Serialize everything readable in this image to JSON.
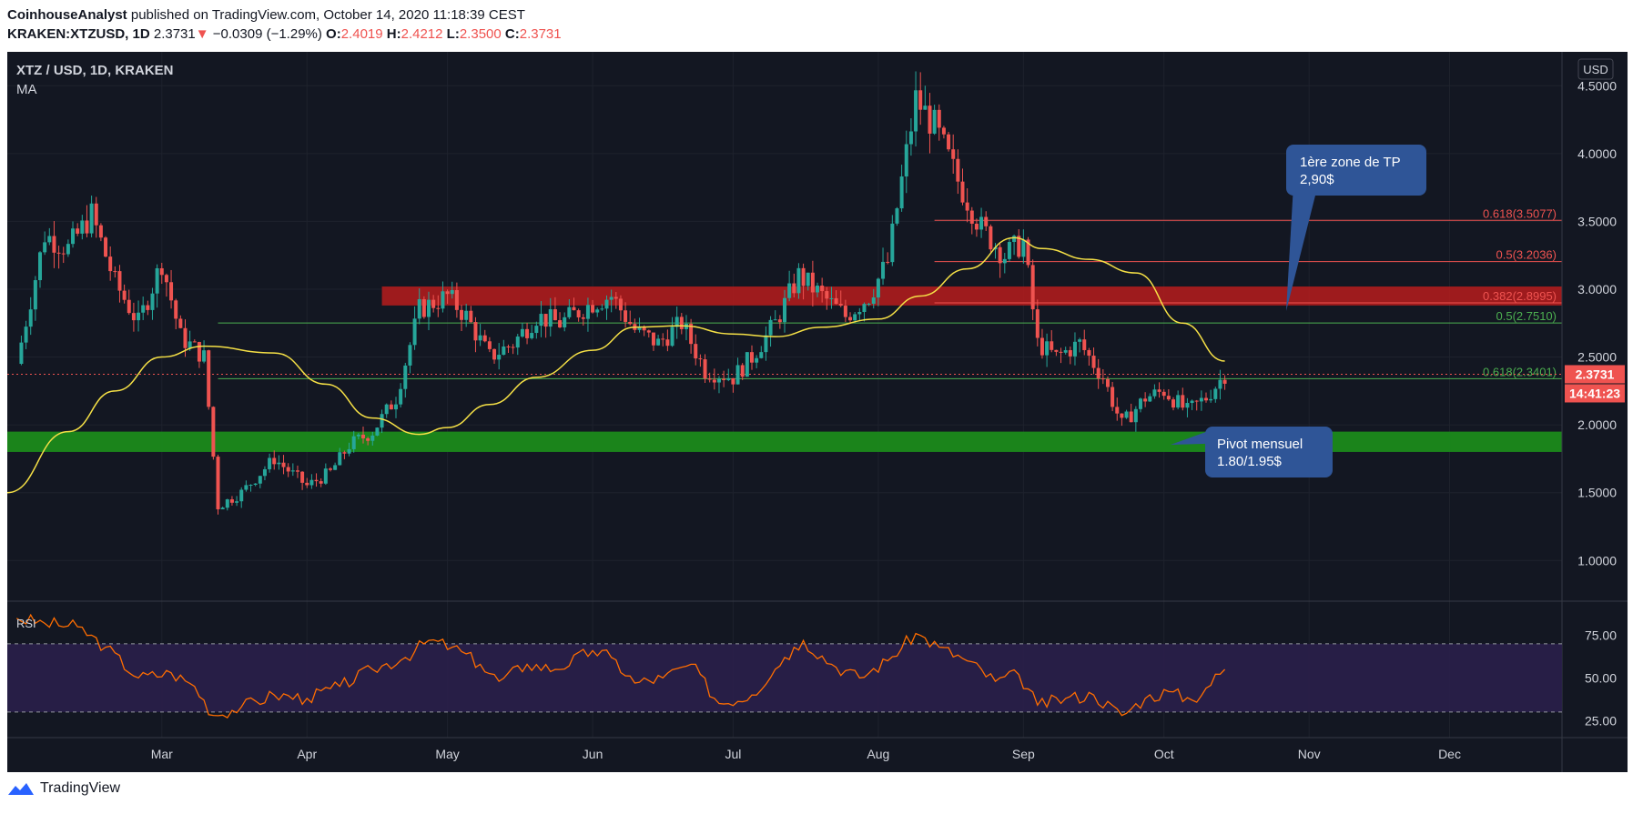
{
  "header": {
    "author": "CoinhouseAnalyst",
    "published": "published on TradingView.com, October 14, 2020 11:18:39 CEST",
    "symbol": "KRAKEN:XTZUSD, 1D",
    "last": "2.3731",
    "change_arrow": "▼",
    "change": "−0.0309 (−1.29%)",
    "o_label": "O:",
    "o_value": "2.4019",
    "h_label": "H:",
    "h_value": "2.4212",
    "l_label": "L:",
    "l_value": "2.3500",
    "c_label": "C:",
    "c_value": "2.3731"
  },
  "legend": {
    "pair": "XTZ / USD, 1D, KRAKEN",
    "indicator": "MA",
    "currency": "USD"
  },
  "price_tags": {
    "last_price": "2.3731",
    "countdown": "14:41:23"
  },
  "annotations": {
    "tp_line1": "1ère zone de TP",
    "tp_line2": "2,90$",
    "pivot_line1": "Pivot mensuel",
    "pivot_line2": "1.80/1.95$"
  },
  "footer": {
    "brand": "TradingView"
  },
  "colors": {
    "background": "#131722",
    "up": "#26a69a",
    "down": "#ef5350",
    "ma": "#f5e046",
    "rsi": "#ff6d00",
    "resistance_zone": "#b71c1c",
    "support_zone": "#1b8a1b",
    "annotation_box": "#2f5597"
  },
  "chart_data": [
    {
      "type": "candlestick",
      "title": "XTZ / USD, 1D, KRAKEN",
      "ylim": [
        0.7,
        4.75
      ],
      "xlim": [
        "2020-01-28",
        "2020-12-25"
      ],
      "y_ticks": [
        "1.0000",
        "1.5000",
        "2.0000",
        "2.5000",
        "3.0000",
        "3.5000",
        "4.0000",
        "4.5000"
      ],
      "x_ticks": [
        {
          "label": "Mar",
          "date": "2020-03-01"
        },
        {
          "label": "Apr",
          "date": "2020-04-01"
        },
        {
          "label": "May",
          "date": "2020-05-01"
        },
        {
          "label": "Jun",
          "date": "2020-06-01"
        },
        {
          "label": "Jul",
          "date": "2020-07-01"
        },
        {
          "label": "Aug",
          "date": "2020-08-01"
        },
        {
          "label": "Sep",
          "date": "2020-09-01"
        },
        {
          "label": "Oct",
          "date": "2020-10-01"
        },
        {
          "label": "Nov",
          "date": "2020-11-01"
        },
        {
          "label": "Dec",
          "date": "2020-12-01"
        }
      ],
      "price_path": [
        {
          "date": "2020-01-30",
          "close": 2.45
        },
        {
          "date": "2020-02-05",
          "close": 3.4
        },
        {
          "date": "2020-02-10",
          "close": 3.3
        },
        {
          "date": "2020-02-15",
          "close": 3.55
        },
        {
          "date": "2020-02-20",
          "close": 3.05
        },
        {
          "date": "2020-02-25",
          "close": 2.75
        },
        {
          "date": "2020-03-01",
          "close": 3.2
        },
        {
          "date": "2020-03-05",
          "close": 2.65
        },
        {
          "date": "2020-03-10",
          "close": 2.5
        },
        {
          "date": "2020-03-13",
          "close": 1.4
        },
        {
          "date": "2020-03-18",
          "close": 1.5
        },
        {
          "date": "2020-03-25",
          "close": 1.75
        },
        {
          "date": "2020-04-01",
          "close": 1.55
        },
        {
          "date": "2020-04-06",
          "close": 1.65
        },
        {
          "date": "2020-04-10",
          "close": 1.85
        },
        {
          "date": "2020-04-15",
          "close": 1.95
        },
        {
          "date": "2020-04-20",
          "close": 2.2
        },
        {
          "date": "2020-04-25",
          "close": 2.85
        },
        {
          "date": "2020-05-01",
          "close": 2.95
        },
        {
          "date": "2020-05-05",
          "close": 2.8
        },
        {
          "date": "2020-05-10",
          "close": 2.5
        },
        {
          "date": "2020-05-15",
          "close": 2.6
        },
        {
          "date": "2020-05-20",
          "close": 2.8
        },
        {
          "date": "2020-05-25",
          "close": 2.75
        },
        {
          "date": "2020-06-01",
          "close": 2.9
        },
        {
          "date": "2020-06-05",
          "close": 2.95
        },
        {
          "date": "2020-06-10",
          "close": 2.7
        },
        {
          "date": "2020-06-15",
          "close": 2.6
        },
        {
          "date": "2020-06-20",
          "close": 2.75
        },
        {
          "date": "2020-06-25",
          "close": 2.4
        },
        {
          "date": "2020-07-01",
          "close": 2.35
        },
        {
          "date": "2020-07-05",
          "close": 2.5
        },
        {
          "date": "2020-07-10",
          "close": 2.75
        },
        {
          "date": "2020-07-15",
          "close": 3.1
        },
        {
          "date": "2020-07-20",
          "close": 2.95
        },
        {
          "date": "2020-07-25",
          "close": 2.8
        },
        {
          "date": "2020-07-30",
          "close": 2.95
        },
        {
          "date": "2020-08-03",
          "close": 3.2
        },
        {
          "date": "2020-08-06",
          "close": 3.8
        },
        {
          "date": "2020-08-09",
          "close": 4.4
        },
        {
          "date": "2020-08-13",
          "close": 4.2
        },
        {
          "date": "2020-08-18",
          "close": 3.8
        },
        {
          "date": "2020-08-23",
          "close": 3.45
        },
        {
          "date": "2020-08-28",
          "close": 3.25
        },
        {
          "date": "2020-09-01",
          "close": 3.35
        },
        {
          "date": "2020-09-04",
          "close": 2.6
        },
        {
          "date": "2020-09-08",
          "close": 2.5
        },
        {
          "date": "2020-09-13",
          "close": 2.6
        },
        {
          "date": "2020-09-18",
          "close": 2.35
        },
        {
          "date": "2020-09-22",
          "close": 2.0
        },
        {
          "date": "2020-09-27",
          "close": 2.2
        },
        {
          "date": "2020-10-01",
          "close": 2.25
        },
        {
          "date": "2020-10-06",
          "close": 2.1
        },
        {
          "date": "2020-10-10",
          "close": 2.2
        },
        {
          "date": "2020-10-14",
          "close": 2.3731
        }
      ],
      "ma_path": [
        {
          "date": "2020-01-28",
          "value": 1.5
        },
        {
          "date": "2020-02-10",
          "value": 1.95
        },
        {
          "date": "2020-02-20",
          "value": 2.25
        },
        {
          "date": "2020-03-01",
          "value": 2.5
        },
        {
          "date": "2020-03-10",
          "value": 2.58
        },
        {
          "date": "2020-03-25",
          "value": 2.53
        },
        {
          "date": "2020-04-05",
          "value": 2.3
        },
        {
          "date": "2020-04-15",
          "value": 2.05
        },
        {
          "date": "2020-04-25",
          "value": 1.93
        },
        {
          "date": "2020-05-01",
          "value": 1.98
        },
        {
          "date": "2020-05-10",
          "value": 2.15
        },
        {
          "date": "2020-05-20",
          "value": 2.35
        },
        {
          "date": "2020-06-01",
          "value": 2.55
        },
        {
          "date": "2020-06-10",
          "value": 2.72
        },
        {
          "date": "2020-06-20",
          "value": 2.73
        },
        {
          "date": "2020-07-01",
          "value": 2.67
        },
        {
          "date": "2020-07-10",
          "value": 2.65
        },
        {
          "date": "2020-07-20",
          "value": 2.72
        },
        {
          "date": "2020-08-01",
          "value": 2.78
        },
        {
          "date": "2020-08-10",
          "value": 2.95
        },
        {
          "date": "2020-08-20",
          "value": 3.15
        },
        {
          "date": "2020-08-30",
          "value": 3.38
        },
        {
          "date": "2020-09-05",
          "value": 3.3
        },
        {
          "date": "2020-09-15",
          "value": 3.22
        },
        {
          "date": "2020-09-25",
          "value": 3.12
        },
        {
          "date": "2020-10-05",
          "value": 2.75
        },
        {
          "date": "2020-10-14",
          "value": 2.47
        }
      ],
      "zones": [
        {
          "kind": "resistance",
          "from": 2.88,
          "to": 3.02,
          "start_date": "2020-04-17"
        },
        {
          "kind": "support",
          "from": 1.8,
          "to": 1.95,
          "start_date": "2020-01-28"
        }
      ],
      "fib_levels": [
        {
          "label": "0.618(3.5077)",
          "price": 3.5077,
          "color": "#ef5350",
          "start_date": "2020-08-13"
        },
        {
          "label": "0.5(3.2036)",
          "price": 3.2036,
          "color": "#ef5350",
          "start_date": "2020-08-13"
        },
        {
          "label": "0.382(2.8995)",
          "price": 2.8995,
          "color": "#ef5350",
          "start_date": "2020-08-13"
        },
        {
          "label": "0.5(2.7510)",
          "price": 2.751,
          "color": "#4caf50",
          "start_date": "2020-03-13"
        },
        {
          "label": "0.618(2.3401)",
          "price": 2.3401,
          "color": "#4caf50",
          "start_date": "2020-03-13"
        }
      ],
      "last_price": 2.3731
    },
    {
      "type": "line",
      "title": "RSI",
      "ylim": [
        15,
        95
      ],
      "y_ticks": [
        "25.00",
        "50.00",
        "75.00"
      ],
      "bands": [
        30,
        70
      ],
      "series": [
        {
          "points": [
            {
              "date": "2020-01-30",
              "value": 85
            },
            {
              "date": "2020-02-05",
              "value": 82
            },
            {
              "date": "2020-02-12",
              "value": 80
            },
            {
              "date": "2020-02-18",
              "value": 68
            },
            {
              "date": "2020-02-25",
              "value": 50
            },
            {
              "date": "2020-03-03",
              "value": 53
            },
            {
              "date": "2020-03-08",
              "value": 45
            },
            {
              "date": "2020-03-12",
              "value": 28
            },
            {
              "date": "2020-03-18",
              "value": 33
            },
            {
              "date": "2020-03-25",
              "value": 40
            },
            {
              "date": "2020-04-01",
              "value": 38
            },
            {
              "date": "2020-04-08",
              "value": 45
            },
            {
              "date": "2020-04-15",
              "value": 55
            },
            {
              "date": "2020-04-22",
              "value": 62
            },
            {
              "date": "2020-04-27",
              "value": 72
            },
            {
              "date": "2020-05-02",
              "value": 68
            },
            {
              "date": "2020-05-08",
              "value": 58
            },
            {
              "date": "2020-05-12",
              "value": 48
            },
            {
              "date": "2020-05-18",
              "value": 58
            },
            {
              "date": "2020-05-24",
              "value": 55
            },
            {
              "date": "2020-06-01",
              "value": 66
            },
            {
              "date": "2020-06-05",
              "value": 62
            },
            {
              "date": "2020-06-10",
              "value": 47
            },
            {
              "date": "2020-06-16",
              "value": 50
            },
            {
              "date": "2020-06-22",
              "value": 58
            },
            {
              "date": "2020-06-28",
              "value": 35
            },
            {
              "date": "2020-07-05",
              "value": 40
            },
            {
              "date": "2020-07-12",
              "value": 62
            },
            {
              "date": "2020-07-16",
              "value": 72
            },
            {
              "date": "2020-07-22",
              "value": 58
            },
            {
              "date": "2020-07-28",
              "value": 50
            },
            {
              "date": "2020-08-03",
              "value": 60
            },
            {
              "date": "2020-08-09",
              "value": 76
            },
            {
              "date": "2020-08-14",
              "value": 68
            },
            {
              "date": "2020-08-20",
              "value": 60
            },
            {
              "date": "2020-08-26",
              "value": 48
            },
            {
              "date": "2020-08-31",
              "value": 52
            },
            {
              "date": "2020-09-04",
              "value": 34
            },
            {
              "date": "2020-09-10",
              "value": 38
            },
            {
              "date": "2020-09-16",
              "value": 40
            },
            {
              "date": "2020-09-22",
              "value": 28
            },
            {
              "date": "2020-09-27",
              "value": 38
            },
            {
              "date": "2020-10-02",
              "value": 42
            },
            {
              "date": "2020-10-07",
              "value": 37
            },
            {
              "date": "2020-10-10",
              "value": 44
            },
            {
              "date": "2020-10-14",
              "value": 55
            }
          ]
        }
      ]
    }
  ]
}
